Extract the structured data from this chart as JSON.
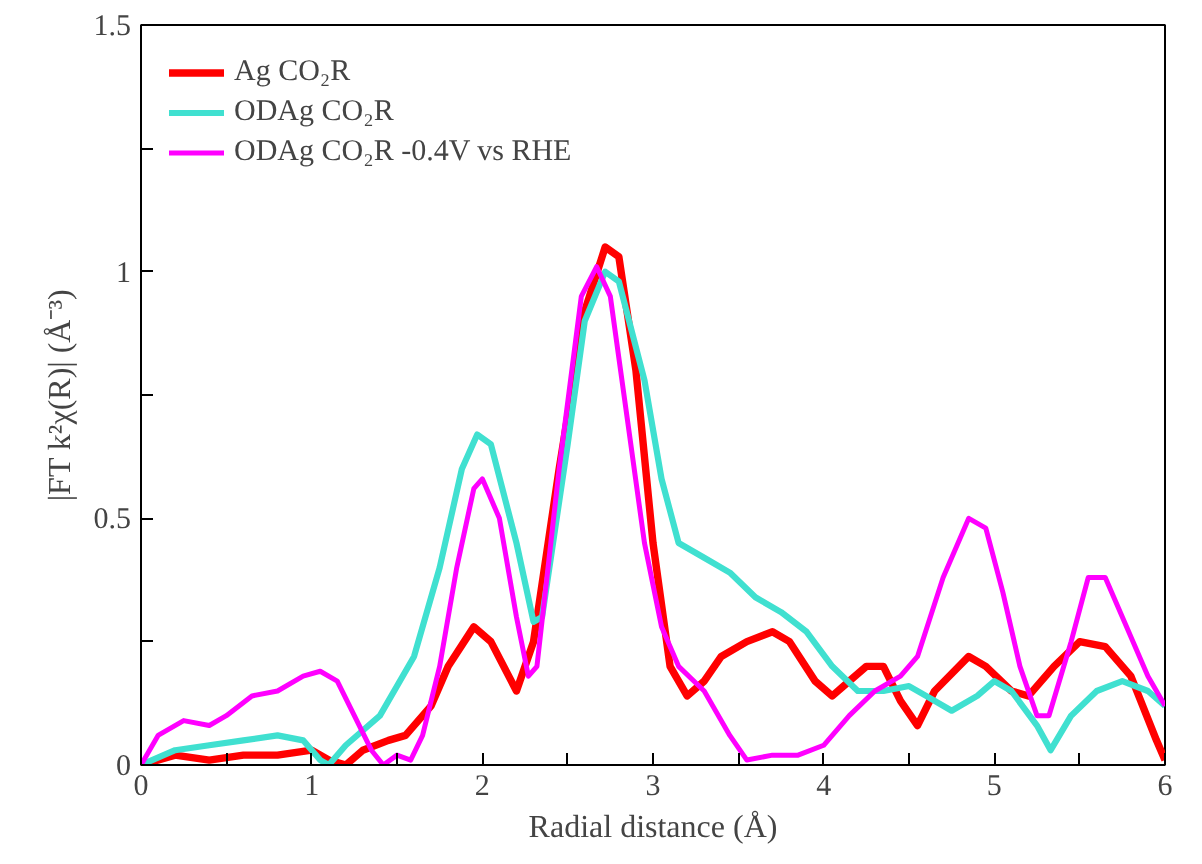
{
  "chart_data": {
    "type": "line",
    "xlabel": "Radial distance (Å)",
    "ylabel": "|FT k²χ(R)| (Å⁻³)",
    "xlim": [
      0,
      6
    ],
    "ylim": [
      0,
      1.5
    ],
    "xticks": [
      0,
      {
        "value": 0.5,
        "label": null
      },
      1,
      {
        "value": 1.5,
        "label": null
      },
      2,
      {
        "value": 2.5,
        "label": null
      },
      3,
      {
        "value": 3.5,
        "label": null
      },
      4,
      {
        "value": 4.5,
        "label": null
      },
      5,
      {
        "value": 5.5,
        "label": null
      },
      6
    ],
    "yticks": [
      0,
      {
        "value": 0.25,
        "label": null
      },
      0.5,
      {
        "value": 0.75,
        "label": null
      },
      1,
      {
        "value": 1.25,
        "label": null
      },
      1.5
    ],
    "grid": false,
    "legend": "top left",
    "marker": "none",
    "line_style": "solid",
    "series": [
      {
        "name": "Ag CO₂R",
        "color": "#ff0000",
        "x": [
          0,
          0.2,
          0.4,
          0.6,
          0.8,
          1.0,
          1.1,
          1.2,
          1.3,
          1.45,
          1.55,
          1.7,
          1.8,
          1.95,
          2.05,
          2.2,
          2.3,
          2.45,
          2.6,
          2.72,
          2.8,
          2.9,
          3.0,
          3.1,
          3.2,
          3.3,
          3.4,
          3.55,
          3.7,
          3.8,
          3.95,
          4.05,
          4.15,
          4.25,
          4.35,
          4.45,
          4.55,
          4.65,
          4.85,
          4.95,
          5.1,
          5.2,
          5.35,
          5.5,
          5.65,
          5.8,
          5.95,
          6.0
        ],
        "values": [
          0,
          0.02,
          0.01,
          0.02,
          0.02,
          0.03,
          0.01,
          0.0,
          0.03,
          0.05,
          0.06,
          0.12,
          0.2,
          0.28,
          0.25,
          0.15,
          0.25,
          0.6,
          0.92,
          1.05,
          1.03,
          0.8,
          0.45,
          0.2,
          0.14,
          0.17,
          0.22,
          0.25,
          0.27,
          0.25,
          0.17,
          0.14,
          0.17,
          0.2,
          0.2,
          0.13,
          0.08,
          0.15,
          0.22,
          0.2,
          0.15,
          0.14,
          0.2,
          0.25,
          0.24,
          0.18,
          0.05,
          0.01
        ]
      },
      {
        "name": "ODAg CO₂R",
        "color": "#40e0d0",
        "x": [
          0,
          0.2,
          0.4,
          0.6,
          0.8,
          0.95,
          1.05,
          1.1,
          1.2,
          1.4,
          1.6,
          1.75,
          1.88,
          1.97,
          2.05,
          2.2,
          2.3,
          2.35,
          2.5,
          2.6,
          2.72,
          2.8,
          2.95,
          3.05,
          3.15,
          3.3,
          3.45,
          3.6,
          3.75,
          3.9,
          4.05,
          4.2,
          4.35,
          4.5,
          4.6,
          4.75,
          4.9,
          5.0,
          5.1,
          5.25,
          5.33,
          5.45,
          5.6,
          5.75,
          5.9,
          6.0
        ],
        "values": [
          0,
          0.03,
          0.04,
          0.05,
          0.06,
          0.05,
          0.01,
          0.0,
          0.04,
          0.1,
          0.22,
          0.4,
          0.6,
          0.67,
          0.65,
          0.45,
          0.29,
          0.3,
          0.65,
          0.9,
          1.0,
          0.98,
          0.78,
          0.58,
          0.45,
          0.42,
          0.39,
          0.34,
          0.31,
          0.27,
          0.2,
          0.15,
          0.15,
          0.16,
          0.14,
          0.11,
          0.14,
          0.17,
          0.15,
          0.08,
          0.03,
          0.1,
          0.15,
          0.17,
          0.15,
          0.12
        ]
      },
      {
        "name": "ODAg CO₂R -0.4V vs RHE",
        "color": "#ff00ff",
        "x": [
          0,
          0.1,
          0.25,
          0.4,
          0.5,
          0.65,
          0.8,
          0.95,
          1.05,
          1.15,
          1.25,
          1.35,
          1.42,
          1.5,
          1.58,
          1.65,
          1.75,
          1.85,
          1.95,
          2.0,
          2.1,
          2.2,
          2.27,
          2.32,
          2.45,
          2.58,
          2.67,
          2.75,
          2.85,
          2.95,
          3.05,
          3.15,
          3.3,
          3.45,
          3.55,
          3.7,
          3.85,
          4.0,
          4.15,
          4.3,
          4.45,
          4.55,
          4.7,
          4.85,
          4.95,
          5.05,
          5.15,
          5.25,
          5.32,
          5.45,
          5.55,
          5.65,
          5.75,
          5.9,
          6.0
        ],
        "values": [
          0,
          0.06,
          0.09,
          0.08,
          0.1,
          0.14,
          0.15,
          0.18,
          0.19,
          0.17,
          0.1,
          0.03,
          0.0,
          0.02,
          0.01,
          0.06,
          0.2,
          0.4,
          0.56,
          0.58,
          0.5,
          0.3,
          0.18,
          0.2,
          0.6,
          0.95,
          1.01,
          0.95,
          0.7,
          0.45,
          0.28,
          0.2,
          0.15,
          0.06,
          0.01,
          0.02,
          0.02,
          0.04,
          0.1,
          0.15,
          0.18,
          0.22,
          0.38,
          0.5,
          0.48,
          0.35,
          0.2,
          0.1,
          0.1,
          0.25,
          0.38,
          0.38,
          0.3,
          0.18,
          0.12
        ]
      }
    ]
  }
}
